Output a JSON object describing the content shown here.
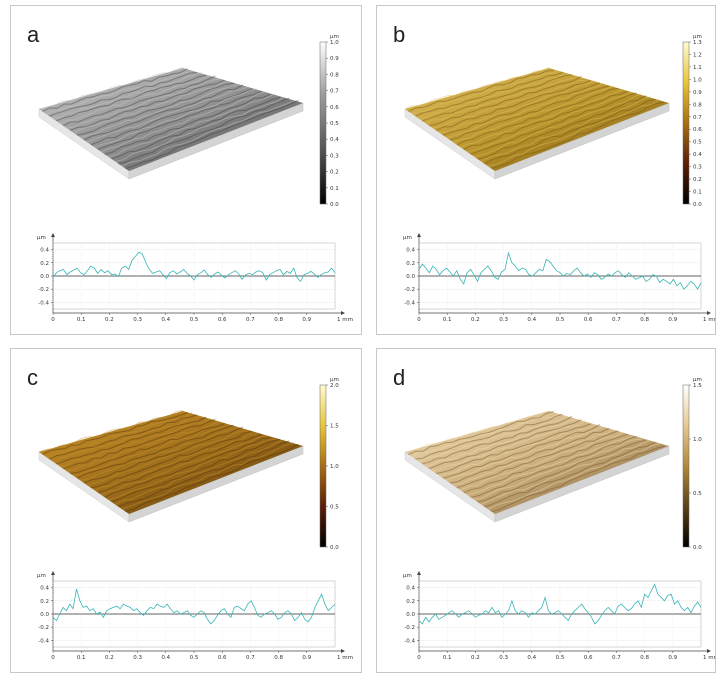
{
  "panels": [
    {
      "letter": "a",
      "surface": {
        "top_color": "#8c8c8c",
        "dark_color": "#3a3a3a",
        "light_color": "#c8c8c8"
      },
      "colorbar": {
        "unit": "µm",
        "ticks": [
          "1.0",
          "0.9",
          "0.8",
          "0.7",
          "0.6",
          "0.5",
          "0.4",
          "0.3",
          "0.2",
          "0.1",
          "0.0"
        ],
        "top_label": "1.0",
        "stops": [
          "#ffffff",
          "#9a9a9a",
          "#555555",
          "#000000"
        ]
      },
      "profile": {
        "ylabel": "µm",
        "xunit": "1 mm",
        "yticks": [
          "0.4",
          "0.2",
          "0.0",
          "-0.2",
          "-0.4"
        ],
        "xticks": [
          "0",
          "0.1",
          "0.2",
          "0.3",
          "0.4",
          "0.5",
          "0.6",
          "0.7",
          "0.8",
          "0.9"
        ],
        "color": "#3ab5b5",
        "values": [
          -0.02,
          0.05,
          0.08,
          0.1,
          0.02,
          0.06,
          0.09,
          0.12,
          0.05,
          0.02,
          0.08,
          0.15,
          0.12,
          0.04,
          0.1,
          0.05,
          0.08,
          0.02,
          0.03,
          -0.01,
          0.12,
          0.15,
          0.1,
          0.24,
          0.3,
          0.36,
          0.33,
          0.2,
          0.1,
          0.04,
          0.06,
          0.08,
          0.02,
          -0.04,
          0.05,
          0.08,
          0.03,
          0.06,
          0.1,
          0.04,
          0.0,
          -0.06,
          0.02,
          0.05,
          0.09,
          0.02,
          -0.02,
          0.03,
          0.06,
          0.01,
          -0.03,
          0.02,
          0.05,
          0.08,
          0.03,
          -0.05,
          0.02,
          0.04,
          0.02,
          0.06,
          0.08,
          0.05,
          -0.06,
          0.02,
          0.05,
          0.08,
          0.1,
          0.02,
          0.07,
          0.04,
          0.12,
          -0.03,
          -0.08,
          0.02,
          0.04,
          0.07,
          0.03,
          -0.02,
          0.02,
          0.05,
          0.06,
          0.12,
          0.05
        ]
      }
    },
    {
      "letter": "b",
      "surface": {
        "top_color": "#b8922a",
        "dark_color": "#6e4f10",
        "light_color": "#e0c060"
      },
      "colorbar": {
        "unit": "µm",
        "ticks": [
          "1.3",
          "1.2",
          "1.1",
          "1.0",
          "0.9",
          "0.8",
          "0.7",
          "0.6",
          "0.5",
          "0.4",
          "0.3",
          "0.2",
          "0.1",
          "0.0"
        ],
        "top_label": "1.3",
        "stops": [
          "#fffbd0",
          "#e8c53a",
          "#a86e12",
          "#5a1e06",
          "#000000"
        ]
      },
      "profile": {
        "ylabel": "µm",
        "xunit": "1 mm",
        "yticks": [
          "0.4",
          "0.2",
          "0.0",
          "-0.2",
          "-0.4"
        ],
        "xticks": [
          "0",
          "0.1",
          "0.2",
          "0.3",
          "0.4",
          "0.5",
          "0.6",
          "0.7",
          "0.8",
          "0.9"
        ],
        "color": "#3ab5b5",
        "values": [
          0.1,
          0.18,
          0.12,
          0.05,
          0.15,
          0.1,
          0.02,
          0.08,
          0.12,
          0.06,
          0.0,
          0.08,
          -0.05,
          -0.12,
          0.05,
          0.1,
          0.02,
          -0.08,
          0.05,
          0.1,
          0.15,
          0.08,
          -0.02,
          -0.05,
          0.06,
          0.1,
          0.35,
          0.2,
          0.15,
          0.08,
          0.12,
          0.1,
          0.02,
          0.0,
          0.05,
          0.1,
          0.08,
          0.25,
          0.22,
          0.15,
          0.08,
          0.05,
          0.0,
          0.04,
          0.02,
          0.08,
          0.12,
          0.05,
          0.0,
          0.03,
          -0.02,
          0.05,
          0.02,
          -0.05,
          -0.02,
          0.03,
          0.0,
          0.05,
          0.08,
          0.02,
          -0.02,
          0.05,
          0.0,
          -0.05,
          -0.03,
          0.0,
          -0.08,
          -0.05,
          0.02,
          0.0,
          -0.1,
          -0.05,
          -0.08,
          -0.12,
          -0.05,
          -0.15,
          -0.1,
          -0.2,
          -0.15,
          -0.08,
          -0.12,
          -0.2,
          -0.1
        ]
      }
    },
    {
      "letter": "c",
      "surface": {
        "top_color": "#9a6a1a",
        "dark_color": "#4e2e08",
        "light_color": "#c8922a"
      },
      "colorbar": {
        "unit": "µm",
        "ticks": [
          "2.0",
          "1.5",
          "1.0",
          "0.5",
          "0.0"
        ],
        "top_label": "2.0",
        "stops": [
          "#fffbd0",
          "#e8c53a",
          "#a86e12",
          "#5a1e06",
          "#000000"
        ]
      },
      "profile": {
        "ylabel": "µm",
        "xunit": "1 mm",
        "yticks": [
          "0.4",
          "0.2",
          "0.0",
          "-0.2",
          "-0.4"
        ],
        "xticks": [
          "0",
          "0.1",
          "0.2",
          "0.3",
          "0.4",
          "0.5",
          "0.6",
          "0.7",
          "0.8",
          "0.9"
        ],
        "color": "#3ab5b5",
        "values": [
          -0.05,
          -0.1,
          0.0,
          0.1,
          0.05,
          0.15,
          0.08,
          0.38,
          0.2,
          0.1,
          0.12,
          0.05,
          0.08,
          0.0,
          0.03,
          -0.05,
          0.05,
          0.08,
          0.1,
          0.12,
          0.08,
          0.15,
          0.12,
          0.1,
          0.05,
          0.08,
          0.02,
          -0.02,
          0.05,
          0.1,
          0.08,
          0.15,
          0.12,
          0.1,
          0.15,
          0.08,
          0.02,
          0.05,
          0.0,
          0.02,
          0.05,
          -0.02,
          -0.05,
          0.0,
          0.05,
          0.02,
          -0.08,
          -0.15,
          -0.1,
          -0.02,
          0.05,
          0.08,
          0.0,
          -0.05,
          0.1,
          0.12,
          0.08,
          0.05,
          0.15,
          0.2,
          0.1,
          -0.02,
          -0.05,
          0.0,
          0.02,
          0.05,
          0.0,
          -0.08,
          -0.05,
          0.02,
          0.05,
          0.0,
          -0.1,
          -0.05,
          0.02,
          -0.08,
          -0.12,
          -0.05,
          0.1,
          0.2,
          0.3,
          0.15,
          0.05,
          0.1,
          0.15
        ]
      }
    },
    {
      "letter": "d",
      "surface": {
        "top_color": "#c8aa78",
        "dark_color": "#6a4e28",
        "light_color": "#f0dcb0"
      },
      "colorbar": {
        "unit": "µm",
        "ticks": [
          "1.5",
          "1.0",
          "0.5",
          "0.0"
        ],
        "top_label": "1.5",
        "stops": [
          "#ffffff",
          "#e6c892",
          "#b08a3a",
          "#5a4218",
          "#000000"
        ]
      },
      "profile": {
        "ylabel": "µm",
        "xunit": "1 mm",
        "yticks": [
          "0.4",
          "0.2",
          "0.0",
          "-0.2",
          "-0.4"
        ],
        "xticks": [
          "0",
          "0.1",
          "0.2",
          "0.3",
          "0.4",
          "0.5",
          "0.6",
          "0.7",
          "0.8",
          "0.9"
        ],
        "color": "#3ab5b5",
        "values": [
          -0.1,
          -0.15,
          -0.05,
          -0.12,
          -0.05,
          0.0,
          -0.08,
          -0.05,
          -0.02,
          0.02,
          0.05,
          0.0,
          -0.05,
          0.0,
          0.02,
          0.05,
          0.0,
          -0.05,
          -0.02,
          0.0,
          0.05,
          0.02,
          0.1,
          0.02,
          0.05,
          -0.05,
          0.0,
          0.05,
          0.2,
          0.05,
          0.0,
          0.05,
          0.02,
          -0.05,
          0.02,
          0.0,
          0.05,
          0.1,
          0.25,
          0.05,
          0.0,
          0.02,
          0.05,
          0.0,
          -0.05,
          -0.1,
          0.0,
          0.05,
          0.1,
          0.15,
          0.08,
          0.02,
          -0.05,
          -0.15,
          -0.1,
          -0.02,
          0.05,
          0.1,
          0.05,
          0.0,
          0.12,
          0.15,
          0.1,
          0.05,
          0.08,
          0.15,
          0.2,
          0.1,
          0.3,
          0.25,
          0.35,
          0.45,
          0.3,
          0.25,
          0.2,
          0.28,
          0.3,
          0.15,
          0.2,
          0.1,
          0.05,
          0.1,
          0.02,
          0.12,
          0.18,
          0.1
        ]
      }
    }
  ]
}
